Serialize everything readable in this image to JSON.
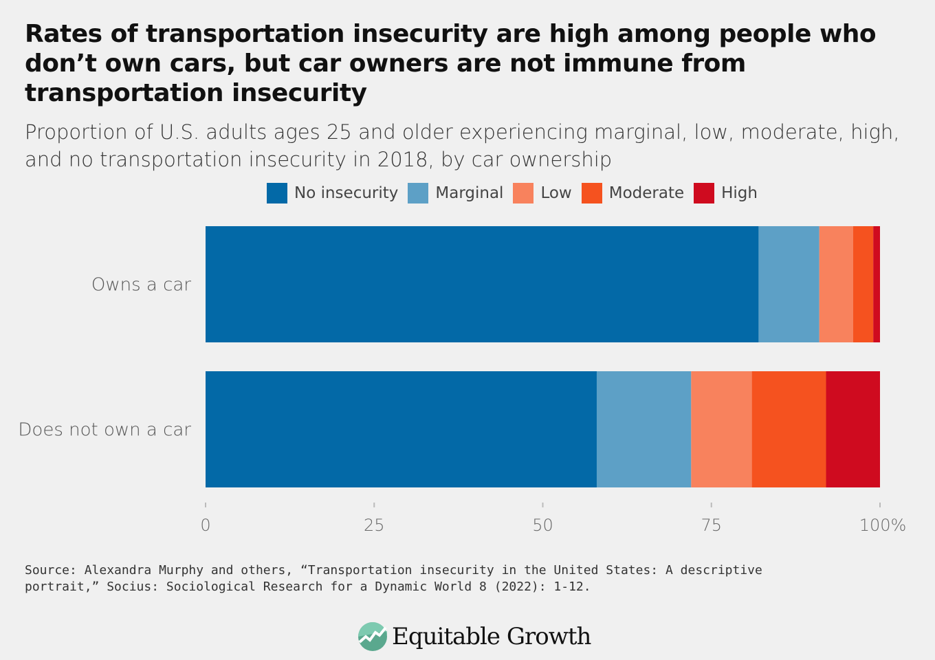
{
  "title": "Rates of transportation insecurity are high among people who don’t own cars, but car owners are not immune from transportation insecurity",
  "subtitle": "Proportion of U.S. adults ages 25 and older experiencing marginal, low, moderate, high, and no transportation insecurity in 2018, by car ownership",
  "source": "Source: Alexandra Murphy and others, “Transportation insecurity in the United States: A descriptive portrait,” Socius: Sociological Research for a Dynamic World 8 (2022): 1-12.",
  "logo": "Equitable Growth",
  "chart_data": {
    "type": "bar",
    "orientation": "horizontal",
    "stacked": true,
    "categories": [
      "Owns a car",
      "Does not own a car"
    ],
    "series": [
      {
        "name": "No insecurity",
        "color": "#0369a7",
        "values": [
          82,
          58
        ]
      },
      {
        "name": "Marginal",
        "color": "#5da0c6",
        "values": [
          9,
          14
        ]
      },
      {
        "name": "Low",
        "color": "#f8825d",
        "values": [
          5,
          9
        ]
      },
      {
        "name": "Moderate",
        "color": "#f5521f",
        "values": [
          3,
          11
        ]
      },
      {
        "name": "High",
        "color": "#cf0b1f",
        "values": [
          1,
          8
        ]
      }
    ],
    "xlim": [
      0,
      100
    ],
    "xticks": [
      "0",
      "25",
      "50",
      "75",
      "100%"
    ],
    "legend": "top",
    "grid": false
  }
}
